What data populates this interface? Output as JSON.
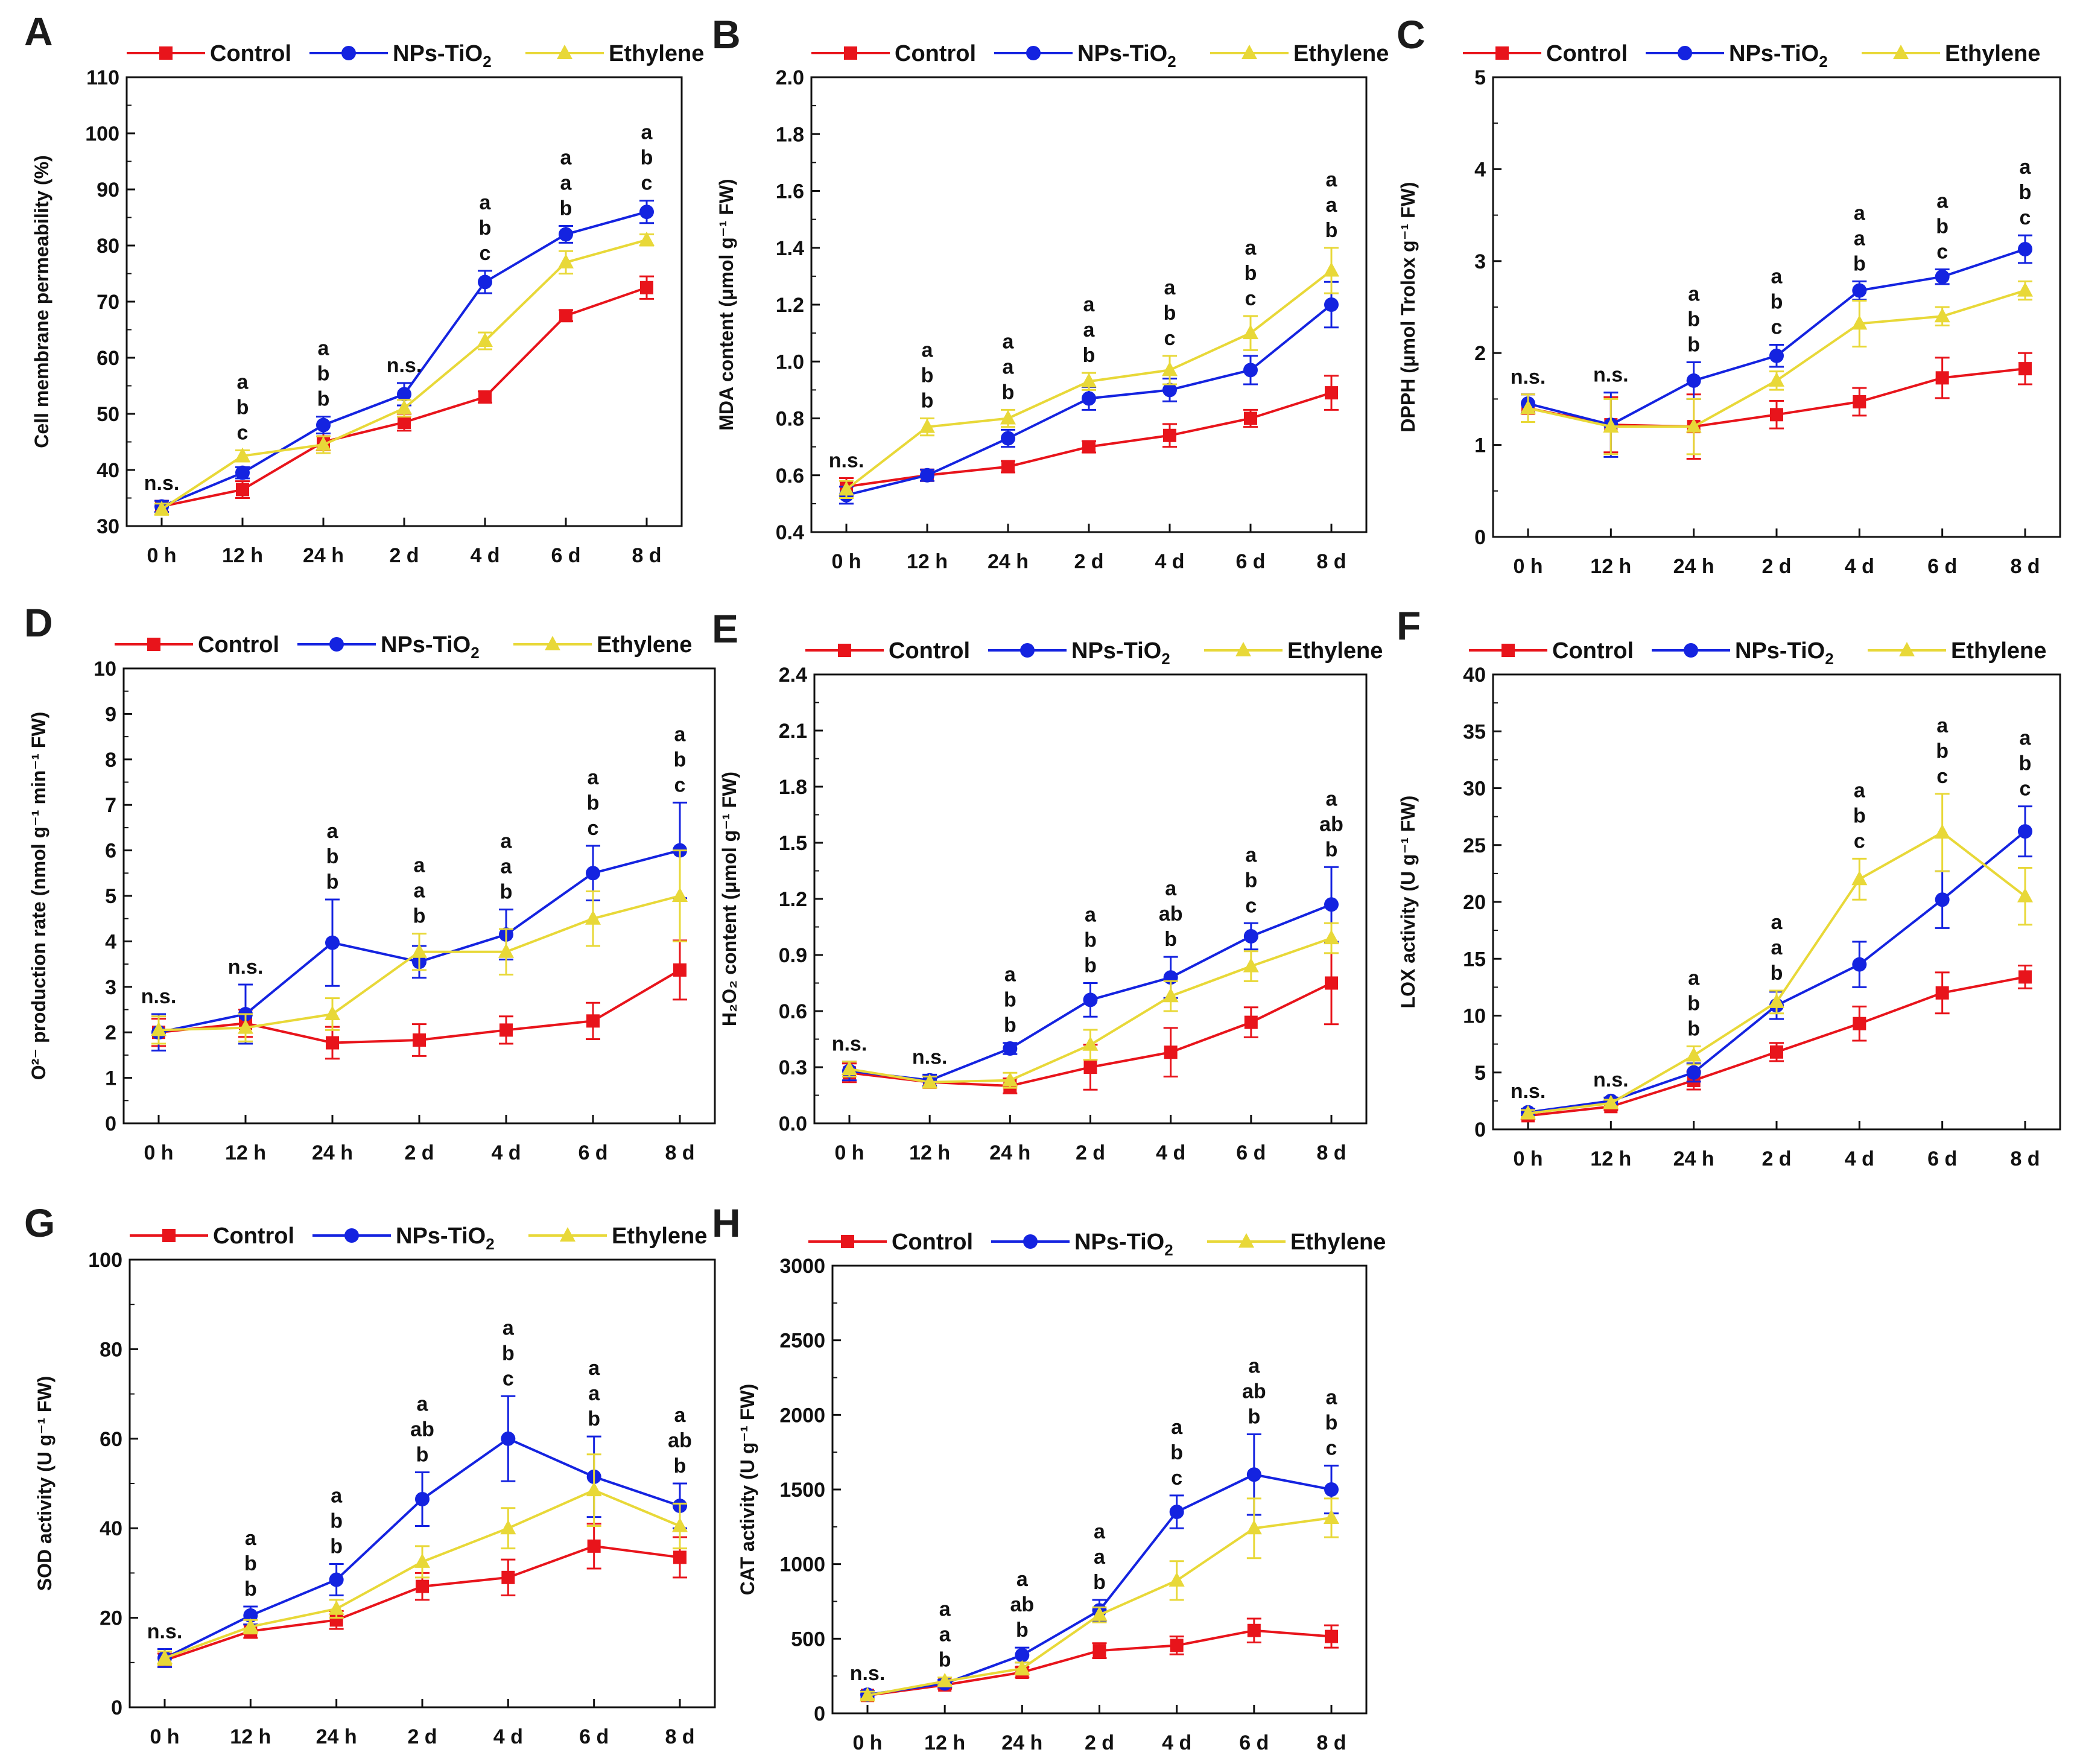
{
  "figure": {
    "legend_labels": {
      "control": "Control",
      "nps_prefix": "NPs-TiO",
      "nps_sub": "2",
      "ethylene": "Ethylene"
    },
    "colors": {
      "Control": "#e8141b",
      "NPs-TiO2": "#1423e0",
      "Ethylene": "#e8d838"
    }
  },
  "chart_data": [
    {
      "panel": "A",
      "type": "line",
      "ylabel": "Cell membrane permeability (%)",
      "categories": [
        "0 h",
        "12 h",
        "24 h",
        "2 d",
        "4 d",
        "6 d",
        "8 d"
      ],
      "ylim": [
        30,
        110
      ],
      "yticks": [
        30,
        40,
        50,
        60,
        70,
        80,
        90,
        100,
        110
      ],
      "series": [
        {
          "name": "Control",
          "values": [
            33.5,
            36.5,
            45,
            48.5,
            53,
            67.5,
            72.5
          ],
          "errors": [
            1.0,
            1.5,
            1.5,
            1.5,
            1.0,
            1.0,
            2.0
          ]
        },
        {
          "name": "NPs-TiO2",
          "values": [
            33.5,
            39.5,
            48,
            53.5,
            73.5,
            82,
            86
          ],
          "errors": [
            1.0,
            1.0,
            1.5,
            2.0,
            2.0,
            1.5,
            2.0
          ]
        },
        {
          "name": "Ethylene",
          "values": [
            33,
            42.5,
            44.5,
            51,
            63,
            77,
            81
          ],
          "errors": [
            1.0,
            1.0,
            1.5,
            1.5,
            1.5,
            2.0,
            1.0
          ]
        }
      ],
      "annotations": [
        [
          "n.s."
        ],
        [
          "a",
          "b",
          "c"
        ],
        [
          "a",
          "b",
          "b"
        ],
        [
          "n.s."
        ],
        [
          "a",
          "b",
          "c"
        ],
        [
          "a",
          "a",
          "b"
        ],
        [
          "a",
          "b",
          "c"
        ]
      ]
    },
    {
      "panel": "B",
      "type": "line",
      "ylabel": "MDA content (μmol g⁻¹ FW)",
      "categories": [
        "0 h",
        "12 h",
        "24 h",
        "2 d",
        "4 d",
        "6 d",
        "8 d"
      ],
      "ylim": [
        0.4,
        2.0
      ],
      "yticks": [
        "0.4",
        "0.6",
        "0.8",
        "1.0",
        "1.2",
        "1.4",
        "1.6",
        "1.8",
        "2.0"
      ],
      "series": [
        {
          "name": "Control",
          "values": [
            0.56,
            0.6,
            0.63,
            0.7,
            0.74,
            0.8,
            0.89
          ],
          "errors": [
            0.03,
            0.02,
            0.02,
            0.02,
            0.04,
            0.03,
            0.06
          ]
        },
        {
          "name": "NPs-TiO2",
          "values": [
            0.53,
            0.6,
            0.73,
            0.87,
            0.9,
            0.97,
            1.2
          ],
          "errors": [
            0.03,
            0.02,
            0.03,
            0.04,
            0.04,
            0.05,
            0.08
          ]
        },
        {
          "name": "Ethylene",
          "values": [
            0.55,
            0.77,
            0.8,
            0.93,
            0.97,
            1.1,
            1.32
          ],
          "errors": [
            0.03,
            0.03,
            0.03,
            0.03,
            0.05,
            0.06,
            0.08
          ]
        }
      ],
      "annotations": [
        [
          "n.s."
        ],
        [
          "a",
          "b",
          "b"
        ],
        [
          "a",
          "a",
          "b"
        ],
        [
          "a",
          "a",
          "b"
        ],
        [
          "a",
          "b",
          "c"
        ],
        [
          "a",
          "b",
          "c"
        ],
        [
          "a",
          "a",
          "b"
        ]
      ]
    },
    {
      "panel": "C",
      "type": "line",
      "ylabel": "DPPH (μmol Trolox g⁻¹ FW)",
      "categories": [
        "0 h",
        "12 h",
        "24 h",
        "2 d",
        "4 d",
        "6 d",
        "8 d"
      ],
      "ylim": [
        0,
        5
      ],
      "yticks": [
        0,
        1,
        2,
        3,
        4,
        5
      ],
      "series": [
        {
          "name": "Control",
          "values": [
            1.4,
            1.22,
            1.2,
            1.33,
            1.47,
            1.73,
            1.83
          ],
          "errors": [
            0.15,
            0.3,
            0.35,
            0.15,
            0.15,
            0.22,
            0.17
          ]
        },
        {
          "name": "NPs-TiO2",
          "values": [
            1.45,
            1.22,
            1.7,
            1.97,
            2.68,
            2.83,
            3.13
          ],
          "errors": [
            0.1,
            0.35,
            0.2,
            0.12,
            0.1,
            0.08,
            0.15
          ]
        },
        {
          "name": "Ethylene",
          "values": [
            1.4,
            1.2,
            1.2,
            1.7,
            2.32,
            2.4,
            2.68
          ],
          "errors": [
            0.15,
            0.3,
            0.3,
            0.1,
            0.25,
            0.1,
            0.1
          ]
        }
      ],
      "annotations": [
        [
          "n.s."
        ],
        [
          "n.s."
        ],
        [
          "a",
          "b",
          "b"
        ],
        [
          "a",
          "b",
          "c"
        ],
        [
          "a",
          "a",
          "b"
        ],
        [
          "a",
          "b",
          "c"
        ],
        [
          "a",
          "b",
          "c"
        ]
      ]
    },
    {
      "panel": "D",
      "type": "line",
      "ylabel": "O²⁻ production rate (nmol g⁻¹ min⁻¹ FW)",
      "categories": [
        "0 h",
        "12 h",
        "24 h",
        "2 d",
        "4 d",
        "6 d",
        "8 d"
      ],
      "ylim": [
        0,
        10
      ],
      "yticks": [
        0,
        1,
        2,
        3,
        4,
        5,
        6,
        7,
        8,
        9,
        10
      ],
      "series": [
        {
          "name": "Control",
          "values": [
            2.0,
            2.2,
            1.77,
            1.83,
            2.05,
            2.25,
            3.37
          ],
          "errors": [
            0.3,
            0.3,
            0.35,
            0.35,
            0.3,
            0.4,
            0.65
          ]
        },
        {
          "name": "NPs-TiO2",
          "values": [
            2.0,
            2.4,
            3.97,
            3.55,
            4.15,
            5.5,
            6.0
          ],
          "errors": [
            0.4,
            0.65,
            0.95,
            0.35,
            0.55,
            0.6,
            1.05
          ]
        },
        {
          "name": "Ethylene",
          "values": [
            2.05,
            2.1,
            2.4,
            3.77,
            3.77,
            4.5,
            5.0
          ],
          "errors": [
            0.3,
            0.3,
            0.35,
            0.4,
            0.5,
            0.6,
            1.0
          ]
        }
      ],
      "annotations": [
        [
          "n.s."
        ],
        [
          "n.s."
        ],
        [
          "a",
          "b",
          "b"
        ],
        [
          "a",
          "a",
          "b"
        ],
        [
          "a",
          "a",
          "b"
        ],
        [
          "a",
          "b",
          "c"
        ],
        [
          "a",
          "b",
          "c"
        ]
      ]
    },
    {
      "panel": "E",
      "type": "line",
      "ylabel": "H₂O₂ content (μmol g⁻¹ FW)",
      "categories": [
        "0 h",
        "12 h",
        "24 h",
        "2 d",
        "4 d",
        "6 d",
        "8 d"
      ],
      "ylim": [
        0,
        2.4
      ],
      "yticks": [
        "0.0",
        "0.3",
        "0.6",
        "0.9",
        "1.2",
        "1.5",
        "1.8",
        "2.1",
        "2.4"
      ],
      "series": [
        {
          "name": "Control",
          "values": [
            0.27,
            0.22,
            0.2,
            0.3,
            0.38,
            0.54,
            0.75
          ],
          "errors": [
            0.05,
            0.03,
            0.04,
            0.12,
            0.13,
            0.08,
            0.22
          ]
        },
        {
          "name": "NPs-TiO2",
          "values": [
            0.28,
            0.23,
            0.4,
            0.66,
            0.78,
            1.0,
            1.17
          ],
          "errors": [
            0.05,
            0.03,
            0.03,
            0.09,
            0.11,
            0.07,
            0.2
          ]
        },
        {
          "name": "Ethylene",
          "values": [
            0.29,
            0.22,
            0.23,
            0.42,
            0.68,
            0.84,
            0.99
          ],
          "errors": [
            0.04,
            0.03,
            0.04,
            0.08,
            0.08,
            0.08,
            0.08
          ]
        }
      ],
      "annotations": [
        [
          "n.s."
        ],
        [
          "n.s."
        ],
        [
          "a",
          "b",
          "b"
        ],
        [
          "a",
          "b",
          "b"
        ],
        [
          "a",
          "ab",
          "b"
        ],
        [
          "a",
          "b",
          "c"
        ],
        [
          "a",
          "ab",
          "b"
        ]
      ]
    },
    {
      "panel": "F",
      "type": "line",
      "ylabel": "LOX activity (U g⁻¹ FW)",
      "categories": [
        "0 h",
        "12 h",
        "24 h",
        "2 d",
        "4 d",
        "6 d",
        "8 d"
      ],
      "ylim": [
        0,
        40
      ],
      "yticks": [
        0,
        5,
        10,
        15,
        20,
        25,
        30,
        35,
        40
      ],
      "series": [
        {
          "name": "Control",
          "values": [
            1.2,
            2.0,
            4.3,
            6.8,
            9.3,
            12.0,
            13.4
          ],
          "errors": [
            0.3,
            0.3,
            0.8,
            0.8,
            1.5,
            1.8,
            1.0
          ]
        },
        {
          "name": "NPs-TiO2",
          "values": [
            1.5,
            2.5,
            5.0,
            10.9,
            14.5,
            20.2,
            26.2
          ],
          "errors": [
            0.3,
            0.3,
            0.8,
            1.2,
            2.0,
            2.5,
            2.2
          ]
        },
        {
          "name": "Ethylene",
          "values": [
            1.4,
            2.3,
            6.5,
            11.2,
            22.0,
            26.1,
            20.5
          ],
          "errors": [
            0.3,
            0.3,
            0.8,
            1.0,
            1.8,
            3.4,
            2.5
          ]
        }
      ],
      "annotations": [
        [
          "n.s."
        ],
        [
          "n.s."
        ],
        [
          "a",
          "b",
          "b"
        ],
        [
          "a",
          "a",
          "b"
        ],
        [
          "a",
          "b",
          "c"
        ],
        [
          "a",
          "b",
          "c"
        ],
        [
          "a",
          "b",
          "c"
        ]
      ]
    },
    {
      "panel": "G",
      "type": "line",
      "ylabel": "SOD activity (U g⁻¹ FW)",
      "categories": [
        "0 h",
        "12 h",
        "24 h",
        "2 d",
        "4 d",
        "6 d",
        "8 d"
      ],
      "ylim": [
        0,
        100
      ],
      "yticks": [
        0,
        20,
        40,
        60,
        80,
        100
      ],
      "series": [
        {
          "name": "Control",
          "values": [
            10.5,
            17,
            19.5,
            27,
            29,
            36,
            33.5
          ],
          "errors": [
            1.5,
            1.5,
            2.0,
            3.0,
            4.0,
            5.0,
            4.5
          ]
        },
        {
          "name": "NPs-TiO2",
          "values": [
            11,
            20.5,
            28.5,
            46.5,
            60,
            51.5,
            45
          ],
          "errors": [
            2.0,
            2.0,
            3.5,
            6.0,
            9.5,
            9.0,
            5.0
          ]
        },
        {
          "name": "Ethylene",
          "values": [
            11,
            18,
            22,
            32.5,
            40,
            48.5,
            40.5
          ],
          "errors": [
            1.5,
            1.5,
            2.0,
            3.5,
            4.5,
            8.0,
            5.0
          ]
        }
      ],
      "annotations": [
        [
          "n.s."
        ],
        [
          "a",
          "b",
          "b"
        ],
        [
          "a",
          "b",
          "b"
        ],
        [
          "a",
          "ab",
          "b"
        ],
        [
          "a",
          "b",
          "c"
        ],
        [
          "a",
          "a",
          "b"
        ],
        [
          "a",
          "ab",
          "b"
        ]
      ]
    },
    {
      "panel": "H",
      "type": "line",
      "ylabel": "CAT activity (U g⁻¹ FW)",
      "categories": [
        "0 h",
        "12 h",
        "24 h",
        "2 d",
        "4 d",
        "6 d",
        "8 d"
      ],
      "ylim": [
        0,
        3000
      ],
      "yticks": [
        0,
        500,
        1000,
        1500,
        2000,
        2500,
        3000
      ],
      "series": [
        {
          "name": "Control",
          "values": [
            120,
            190,
            275,
            420,
            455,
            555,
            515
          ],
          "errors": [
            25,
            25,
            35,
            50,
            60,
            80,
            75
          ]
        },
        {
          "name": "NPs-TiO2",
          "values": [
            125,
            200,
            390,
            690,
            1350,
            1600,
            1500
          ],
          "errors": [
            25,
            25,
            50,
            70,
            110,
            270,
            160
          ]
        },
        {
          "name": "Ethylene",
          "values": [
            120,
            215,
            300,
            660,
            890,
            1240,
            1310
          ],
          "errors": [
            25,
            25,
            40,
            50,
            130,
            200,
            130
          ]
        }
      ],
      "annotations": [
        [
          "n.s."
        ],
        [
          "a",
          "a",
          "b"
        ],
        [
          "a",
          "ab",
          "b"
        ],
        [
          "a",
          "a",
          "b"
        ],
        [
          "a",
          "b",
          "c"
        ],
        [
          "a",
          "ab",
          "b"
        ],
        [
          "a",
          "b",
          "c"
        ]
      ]
    }
  ]
}
